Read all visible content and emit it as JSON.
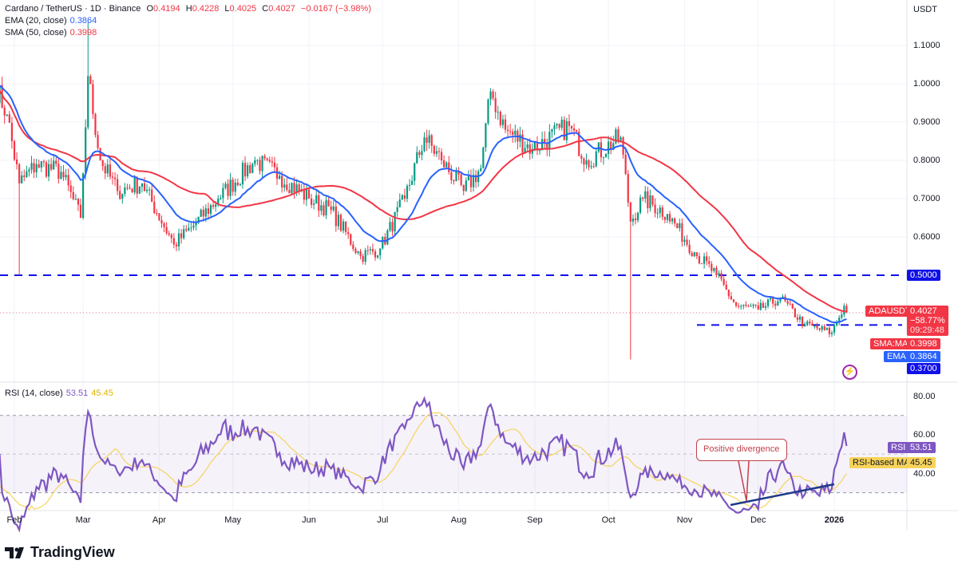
{
  "header": {
    "symbol": "Cardano / TetherUS · 1D · Binance",
    "o_label": "O",
    "o": "0.4194",
    "h_label": "H",
    "h": "0.4228",
    "l_label": "L",
    "l": "0.4025",
    "c_label": "C",
    "c": "0.4027",
    "change": "−0.0167 (−3.98%)",
    "ema_label": "EMA (20, close)",
    "ema_value": "0.3864",
    "sma_label": "SMA (50, close)",
    "sma_value": "0.3998"
  },
  "rsi_legend": {
    "label": "RSI (14, close)",
    "rsi": "53.51",
    "ma": "45.45"
  },
  "price_axis": {
    "unit": "USDT",
    "ticks": [
      "1.1000",
      "1.0000",
      "0.9000",
      "0.8000",
      "0.7000",
      "0.6000"
    ]
  },
  "badges": {
    "level_high": "0.5000",
    "symbol": "ADAUSDT",
    "last": "0.4027",
    "change_pct": "−58.77%",
    "countdown": "09:29:48",
    "sma_label": "SMA:MA",
    "sma": "0.3998",
    "ema_label": "EMA",
    "ema": "0.3864",
    "level_low": "0.3700"
  },
  "rsi_axis": {
    "ticks": [
      "80.00",
      "60.00",
      "40.00"
    ],
    "rsi_label": "RSI",
    "rsi": "53.51",
    "ma_label": "RSI-based MA",
    "ma": "45.45"
  },
  "x_axis": {
    "labels": [
      "Feb",
      "Mar",
      "Apr",
      "May",
      "Jun",
      "Jul",
      "Aug",
      "Sep",
      "Oct",
      "Nov",
      "Dec",
      "2026"
    ]
  },
  "annotation": {
    "text": "Positive divergence"
  },
  "brand": {
    "name": "TradingView"
  },
  "colors": {
    "up": "#089981",
    "down": "#f23645",
    "ema": "#2962ff",
    "sma": "#f23645",
    "levels": "#1010e8",
    "rsi": "#7e57c2",
    "rsi_ma": "#f7d35a"
  },
  "chart_data": {
    "type": "candlestick",
    "title": "Cardano / TetherUS · 1D · Binance",
    "ylim": [
      0.26,
      1.2
    ],
    "rsi_ylim": [
      20,
      90
    ],
    "horizontal_levels": [
      0.5,
      0.37
    ],
    "rsi_bands": [
      70,
      30
    ],
    "indicators": [
      "EMA 20",
      "SMA 50",
      "RSI 14",
      "RSI-based MA 14"
    ],
    "approx_closes": [
      [
        "2025-01-24",
        1.0
      ],
      [
        "2025-01-29",
        0.92
      ],
      [
        "2025-02-03",
        0.74
      ],
      [
        "2025-02-10",
        0.79
      ],
      [
        "2025-02-20",
        0.77
      ],
      [
        "2025-02-28",
        0.65
      ],
      [
        "2025-03-03",
        1.02
      ],
      [
        "2025-03-08",
        0.8
      ],
      [
        "2025-03-15",
        0.72
      ],
      [
        "2025-03-25",
        0.74
      ],
      [
        "2025-04-07",
        0.58
      ],
      [
        "2025-04-15",
        0.63
      ],
      [
        "2025-04-25",
        0.7
      ],
      [
        "2025-05-10",
        0.8
      ],
      [
        "2025-05-20",
        0.76
      ],
      [
        "2025-06-01",
        0.7
      ],
      [
        "2025-06-10",
        0.67
      ],
      [
        "2025-06-22",
        0.55
      ],
      [
        "2025-06-30",
        0.57
      ],
      [
        "2025-07-10",
        0.7
      ],
      [
        "2025-07-18",
        0.86
      ],
      [
        "2025-07-25",
        0.8
      ],
      [
        "2025-08-03",
        0.72
      ],
      [
        "2025-08-10",
        0.78
      ],
      [
        "2025-08-14",
        0.98
      ],
      [
        "2025-08-20",
        0.88
      ],
      [
        "2025-08-31",
        0.83
      ],
      [
        "2025-09-15",
        0.89
      ],
      [
        "2025-09-22",
        0.8
      ],
      [
        "2025-10-06",
        0.86
      ],
      [
        "2025-10-10",
        0.64
      ],
      [
        "2025-10-15",
        0.7
      ],
      [
        "2025-10-25",
        0.66
      ],
      [
        "2025-11-05",
        0.56
      ],
      [
        "2025-11-14",
        0.5
      ],
      [
        "2025-11-22",
        0.42
      ],
      [
        "2025-12-01",
        0.41
      ],
      [
        "2025-12-10",
        0.44
      ],
      [
        "2025-12-20",
        0.37
      ],
      [
        "2025-12-31",
        0.35
      ],
      [
        "2026-01-05",
        0.42
      ],
      [
        "2026-01-06",
        0.4027
      ]
    ],
    "notable_wicks": [
      [
        "2025-02-03",
        0.5
      ],
      [
        "2025-03-03",
        1.16
      ],
      [
        "2025-10-10",
        0.28
      ]
    ]
  }
}
